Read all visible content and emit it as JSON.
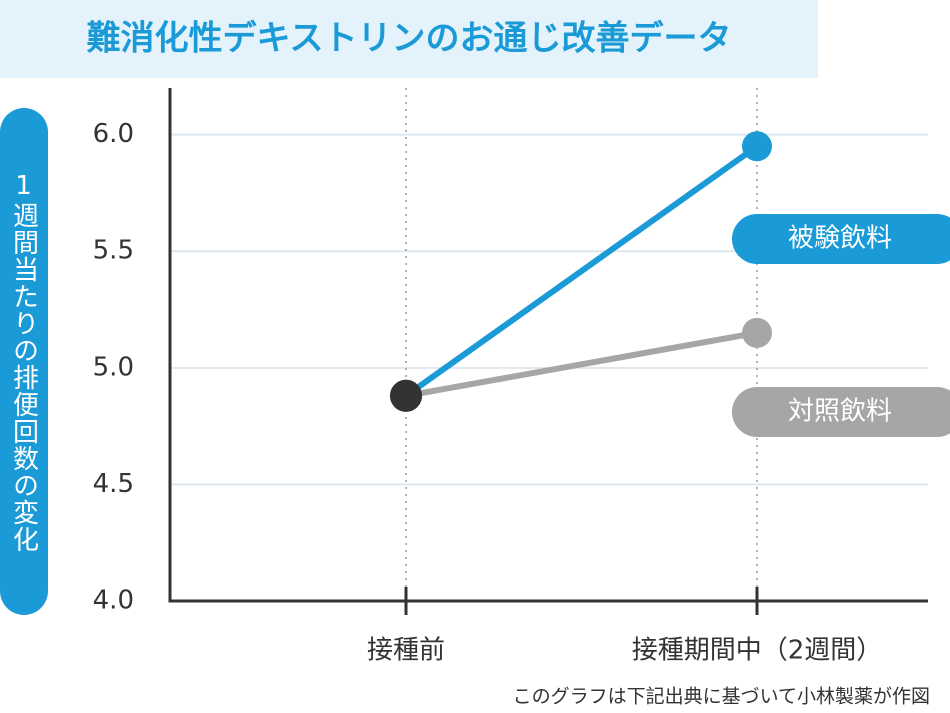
{
  "chart_data": {
    "type": "line",
    "title": "難消化性デキストリンのお通じ改善データ",
    "y_label": "1週間当たりの排便回数の変化",
    "categories": [
      "接種前",
      "接種期間中（2週間）"
    ],
    "series": [
      {
        "name": "被験飲料",
        "color": "#1a9ad6",
        "values": [
          4.88,
          5.95
        ]
      },
      {
        "name": "対照飲料",
        "color": "#a6a6a6",
        "values": [
          4.88,
          5.15
        ]
      }
    ],
    "start_color": "#333333",
    "ylim": [
      4.0,
      6.2
    ],
    "yticks": [
      {
        "value": 4.0,
        "label": "4.0"
      },
      {
        "value": 4.5,
        "label": "4.5"
      },
      {
        "value": 5.0,
        "label": "5.0"
      },
      {
        "value": 5.5,
        "label": "5.5"
      },
      {
        "value": 6.0,
        "label": "6.0"
      }
    ],
    "grid": true,
    "footnote": "このグラフは下記出典に基づいて小林製薬が作図"
  }
}
